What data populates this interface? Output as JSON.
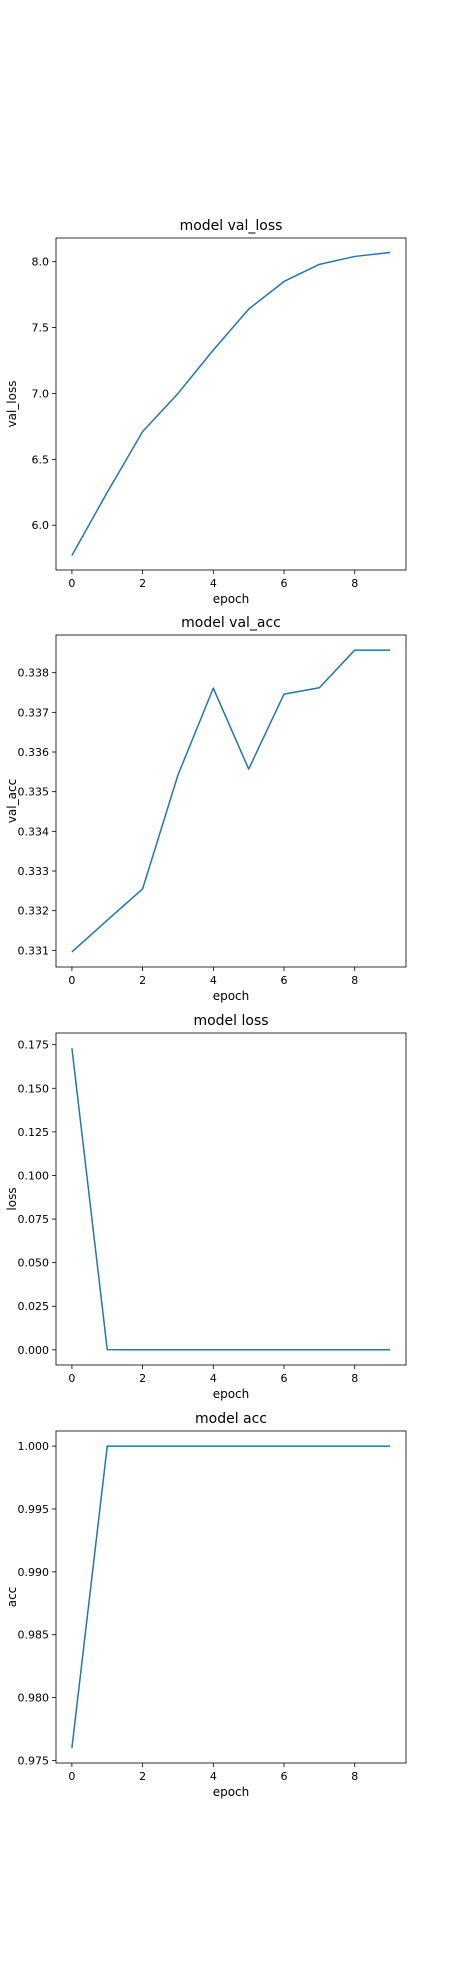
{
  "chart_data": [
    {
      "type": "line",
      "title": "model val_loss",
      "xlabel": "epoch",
      "ylabel": "val_loss",
      "x": [
        0,
        1,
        2,
        3,
        4,
        5,
        6,
        7,
        8,
        9
      ],
      "series": [
        {
          "values": [
            5.77,
            6.25,
            6.71,
            7.0,
            7.33,
            7.64,
            7.85,
            7.98,
            8.04,
            8.07
          ]
        }
      ],
      "xlim": [
        -0.45,
        9.45
      ],
      "ylim": [
        5.66,
        8.18
      ],
      "xticks": [
        0,
        2,
        4,
        6,
        8
      ],
      "yticks": [
        6.0,
        6.5,
        7.0,
        7.5,
        8.0
      ],
      "ytick_labels": [
        "6.0",
        "6.5",
        "7.0",
        "7.5",
        "8.0"
      ],
      "xtick_labels": [
        "0",
        "2",
        "4",
        "6",
        "8"
      ],
      "grid": false,
      "color": "#1f77b4"
    },
    {
      "type": "line",
      "title": "model val_acc",
      "xlabel": "epoch",
      "ylabel": "val_acc",
      "x": [
        0,
        1,
        2,
        3,
        4,
        5,
        6,
        7,
        8,
        9
      ],
      "series": [
        {
          "values": [
            0.33096,
            0.33176,
            0.33255,
            0.33542,
            0.33761,
            0.33557,
            0.33746,
            0.33762,
            0.33857,
            0.33857
          ]
        }
      ],
      "xlim": [
        -0.45,
        9.45
      ],
      "ylim": [
        0.33058,
        0.33895
      ],
      "xticks": [
        0,
        2,
        4,
        6,
        8
      ],
      "yticks": [
        0.331,
        0.332,
        0.333,
        0.334,
        0.335,
        0.336,
        0.337,
        0.338
      ],
      "ytick_labels": [
        "0.331",
        "0.332",
        "0.333",
        "0.334",
        "0.335",
        "0.336",
        "0.337",
        "0.338"
      ],
      "xtick_labels": [
        "0",
        "2",
        "4",
        "6",
        "8"
      ],
      "grid": false,
      "color": "#1f77b4"
    },
    {
      "type": "line",
      "title": "model loss",
      "xlabel": "epoch",
      "ylabel": "loss",
      "x": [
        0,
        1,
        2,
        3,
        4,
        5,
        6,
        7,
        8,
        9
      ],
      "series": [
        {
          "values": [
            0.173,
            0.0001,
            5e-05,
            3e-05,
            2e-05,
            2e-05,
            1e-05,
            1e-05,
            1e-05,
            1e-05
          ]
        }
      ],
      "xlim": [
        -0.45,
        9.45
      ],
      "ylim": [
        -0.0087,
        0.1817
      ],
      "xticks": [
        0,
        2,
        4,
        6,
        8
      ],
      "yticks": [
        0.0,
        0.025,
        0.05,
        0.075,
        0.1,
        0.125,
        0.15,
        0.175
      ],
      "ytick_labels": [
        "0.000",
        "0.025",
        "0.050",
        "0.075",
        "0.100",
        "0.125",
        "0.150",
        "0.175"
      ],
      "xtick_labels": [
        "0",
        "2",
        "4",
        "6",
        "8"
      ],
      "grid": false,
      "color": "#1f77b4"
    },
    {
      "type": "line",
      "title": "model acc",
      "xlabel": "epoch",
      "ylabel": "acc",
      "x": [
        0,
        1,
        2,
        3,
        4,
        5,
        6,
        7,
        8,
        9
      ],
      "series": [
        {
          "values": [
            0.976,
            1.0,
            1.0,
            1.0,
            1.0,
            1.0,
            1.0,
            1.0,
            1.0,
            1.0
          ]
        }
      ],
      "xlim": [
        -0.45,
        9.45
      ],
      "ylim": [
        0.9748,
        1.0012
      ],
      "xticks": [
        0,
        2,
        4,
        6,
        8
      ],
      "yticks": [
        0.975,
        0.98,
        0.985,
        0.99,
        0.995,
        1.0
      ],
      "ytick_labels": [
        "0.975",
        "0.980",
        "0.985",
        "0.990",
        "0.995",
        "1.000"
      ],
      "xtick_labels": [
        "0",
        "2",
        "4",
        "6",
        "8"
      ],
      "grid": false,
      "color": "#1f77b4"
    }
  ]
}
